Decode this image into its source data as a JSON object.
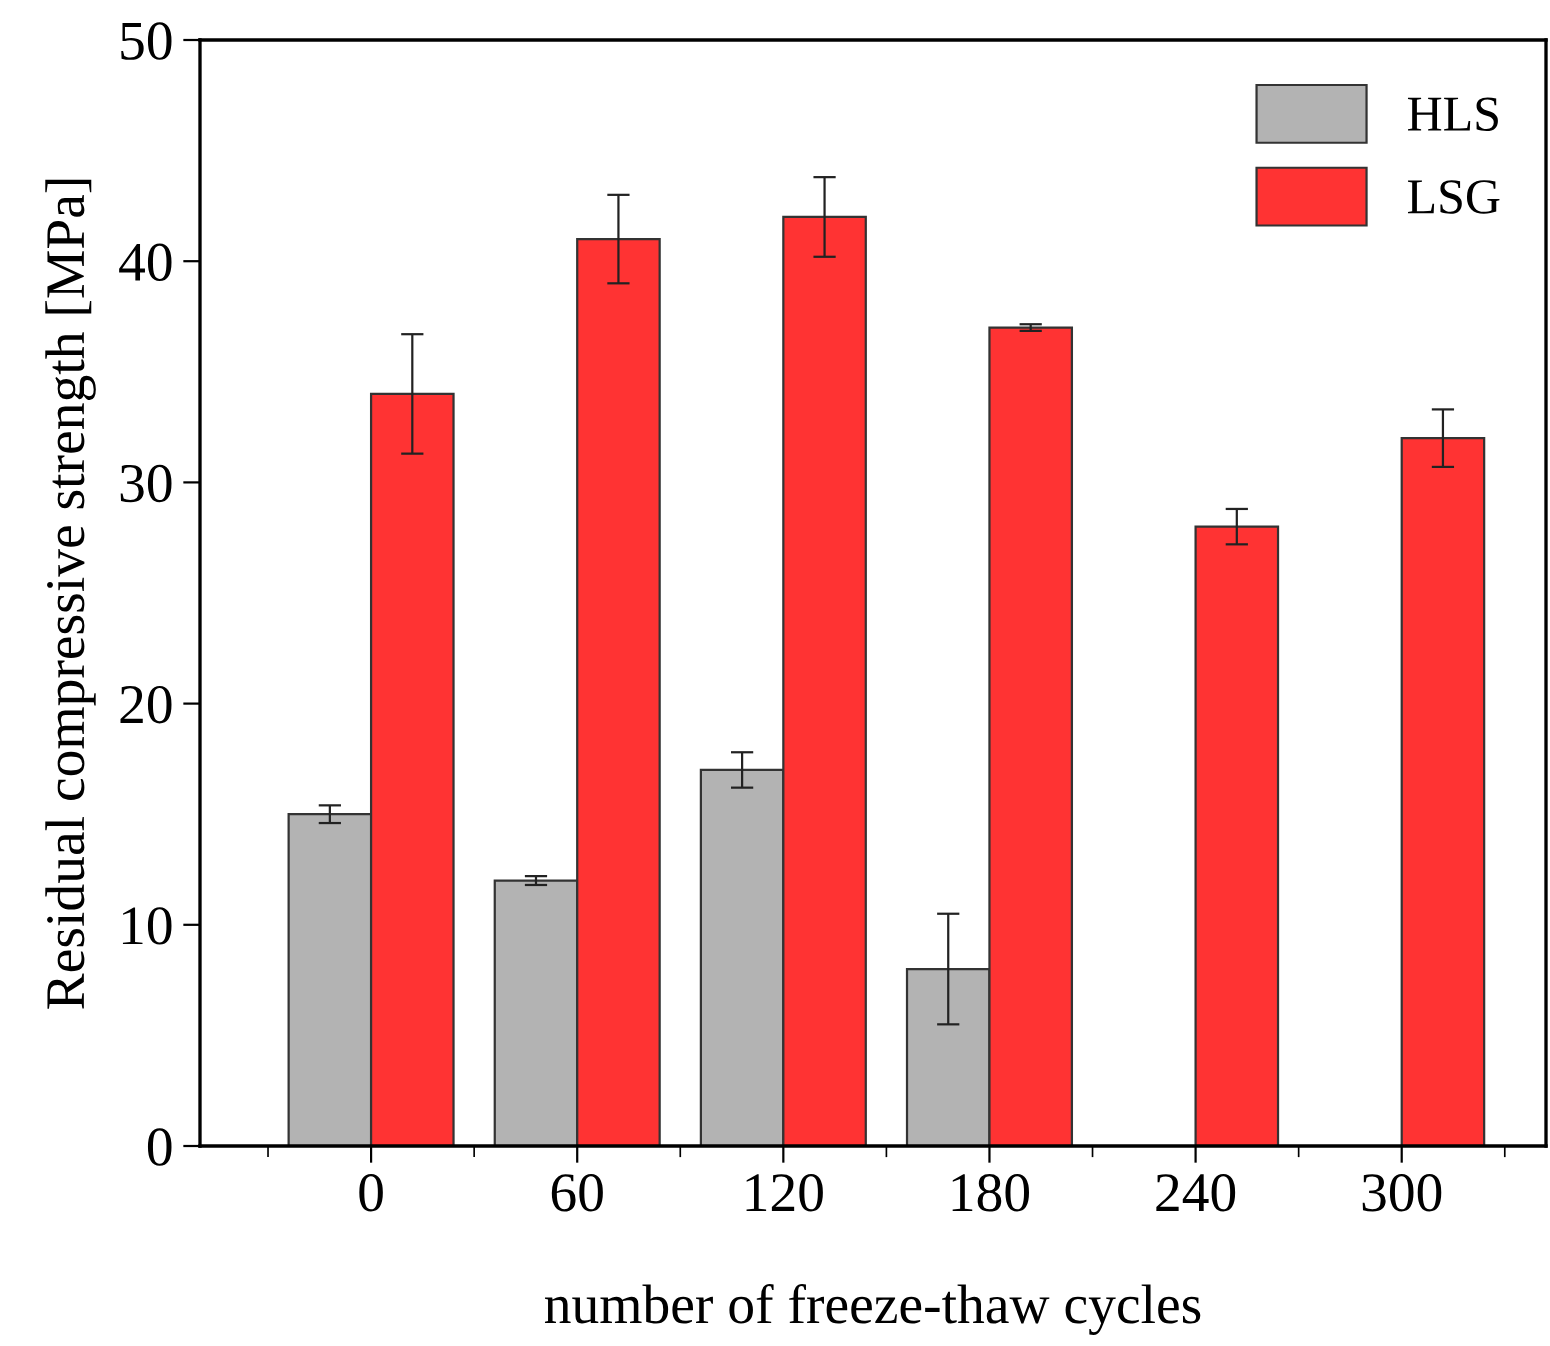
{
  "chart_data": {
    "type": "bar",
    "xlabel": "number of freeze-thaw cycles",
    "ylabel": "Residual compressive strength [MPa]",
    "categories": [
      "0",
      "60",
      "120",
      "180",
      "240",
      "300"
    ],
    "series": [
      {
        "name": "HLS",
        "color": "#b3b3b3",
        "values": [
          15,
          12,
          17,
          8,
          null,
          null
        ],
        "errors": [
          0.4,
          0.2,
          0.8,
          2.5,
          null,
          null
        ]
      },
      {
        "name": "LSG",
        "color": "#ff3333",
        "values": [
          34,
          41,
          42,
          37,
          28,
          32
        ],
        "errors": [
          2.7,
          2.0,
          1.8,
          0.15,
          0.8,
          1.3
        ]
      }
    ],
    "ylim": [
      0,
      50
    ],
    "yticks": [
      0,
      10,
      20,
      30,
      40,
      50
    ],
    "grid": false,
    "legend": "top right"
  }
}
